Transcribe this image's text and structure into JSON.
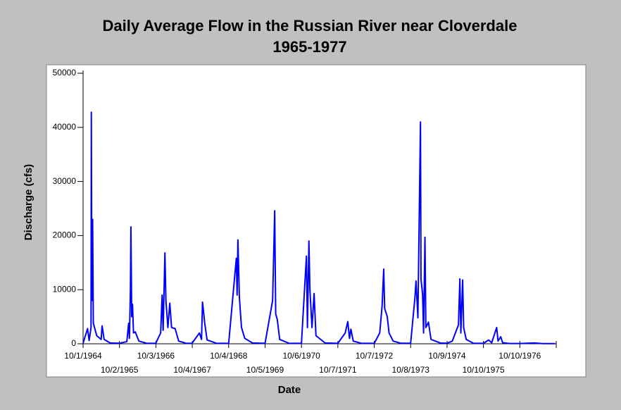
{
  "chart_data": {
    "type": "line",
    "title": "Daily Average Flow in the Russian River near Cloverdale",
    "subtitle": "1965-1977",
    "xlabel": "Date",
    "ylabel": "Discharge (cfs)",
    "color": "#0000ff",
    "xlim": [
      "1964-10-01",
      "1977-10-11"
    ],
    "ylim": [
      0,
      50000
    ],
    "yticks": [
      0,
      10000,
      20000,
      30000,
      40000,
      50000
    ],
    "xticks": [
      {
        "value": "1964-10-01",
        "label": "10/1/1964"
      },
      {
        "value": "1965-10-02",
        "label": "10/2/1965"
      },
      {
        "value": "1966-10-03",
        "label": "10/3/1966"
      },
      {
        "value": "1967-10-04",
        "label": "10/4/1967"
      },
      {
        "value": "1968-10-04",
        "label": "10/4/1968"
      },
      {
        "value": "1969-10-05",
        "label": "10/5/1969"
      },
      {
        "value": "1970-10-06",
        "label": "10/6/1970"
      },
      {
        "value": "1971-10-07",
        "label": "10/7/1971"
      },
      {
        "value": "1972-10-07",
        "label": "10/7/1972"
      },
      {
        "value": "1973-10-08",
        "label": "10/8/1973"
      },
      {
        "value": "1974-10-09",
        "label": "10/9/1974"
      },
      {
        "value": "1975-10-10",
        "label": "10/10/1975"
      },
      {
        "value": "1976-10-10",
        "label": "10/10/1976"
      }
    ],
    "x": [
      "1964-10-01",
      "1964-11-15",
      "1964-12-01",
      "1964-12-20",
      "1964-12-23",
      "1964-12-28",
      "1965-01-05",
      "1965-01-12",
      "1965-02-15",
      "1965-04-01",
      "1965-04-10",
      "1965-05-01",
      "1965-07-01",
      "1965-10-01",
      "1965-12-15",
      "1966-01-02",
      "1966-01-10",
      "1966-01-20",
      "1966-01-25",
      "1966-02-02",
      "1966-02-10",
      "1966-02-20",
      "1966-03-10",
      "1966-04-15",
      "1966-07-01",
      "1966-10-01",
      "1966-11-20",
      "1966-12-05",
      "1966-12-15",
      "1967-01-02",
      "1967-01-12",
      "1967-02-01",
      "1967-02-20",
      "1967-03-10",
      "1967-04-15",
      "1967-05-20",
      "1967-08-01",
      "1967-10-01",
      "1967-12-15",
      "1968-01-05",
      "1968-01-15",
      "1968-01-25",
      "1968-02-05",
      "1968-03-01",
      "1968-06-01",
      "1968-10-04",
      "1968-12-20",
      "1968-12-28",
      "1969-01-05",
      "1969-01-20",
      "1969-02-10",
      "1969-03-15",
      "1969-06-01",
      "1969-10-05",
      "1969-12-20",
      "1970-01-10",
      "1970-01-20",
      "1970-02-05",
      "1970-03-01",
      "1970-06-01",
      "1970-10-06",
      "1970-11-25",
      "1970-12-05",
      "1970-12-20",
      "1970-12-30",
      "1971-01-20",
      "1971-02-10",
      "1971-03-01",
      "1971-06-01",
      "1971-10-07",
      "1971-12-20",
      "1972-01-15",
      "1972-02-01",
      "1972-02-15",
      "1972-03-10",
      "1972-06-01",
      "1972-10-07",
      "1972-12-01",
      "1972-12-25",
      "1973-01-10",
      "1973-01-20",
      "1973-02-15",
      "1973-03-05",
      "1973-04-15",
      "1973-07-01",
      "1973-10-08",
      "1973-11-20",
      "1973-12-01",
      "1973-12-20",
      "1974-01-15",
      "1974-01-20",
      "1974-02-05",
      "1974-02-15",
      "1974-03-01",
      "1974-03-10",
      "1974-04-05",
      "1974-05-01",
      "1974-08-01",
      "1974-10-09",
      "1974-12-01",
      "1975-02-01",
      "1975-02-15",
      "1975-02-25",
      "1975-03-15",
      "1975-03-25",
      "1975-04-20",
      "1975-07-01",
      "1975-10-10",
      "1975-12-01",
      "1976-01-01",
      "1976-02-20",
      "1976-03-05",
      "1976-04-01",
      "1976-04-20",
      "1976-07-01",
      "1976-10-10",
      "1977-03-01",
      "1977-06-01",
      "1977-09-30"
    ],
    "values": [
      100,
      2800,
      600,
      3000,
      42800,
      8000,
      23000,
      3800,
      1500,
      800,
      3300,
      800,
      150,
      100,
      400,
      3800,
      1000,
      10000,
      21600,
      5000,
      7300,
      2000,
      2200,
      500,
      100,
      80,
      2000,
      9000,
      2500,
      16800,
      8000,
      3000,
      7500,
      3000,
      2800,
      500,
      100,
      80,
      2000,
      800,
      7700,
      6000,
      4000,
      700,
      100,
      80,
      15800,
      9000,
      19200,
      8500,
      3000,
      1000,
      150,
      80,
      8000,
      24600,
      5500,
      4500,
      800,
      100,
      80,
      16200,
      3000,
      19000,
      10000,
      3000,
      9300,
      1500,
      150,
      80,
      2000,
      4100,
      1000,
      2700,
      500,
      80,
      80,
      2000,
      7000,
      13800,
      6500,
      5000,
      2000,
      500,
      100,
      90,
      8500,
      11600,
      4800,
      41000,
      12000,
      9200,
      2000,
      19700,
      3000,
      4000,
      800,
      150,
      100,
      500,
      3500,
      12000,
      2000,
      11800,
      3000,
      800,
      100,
      80,
      700,
      200,
      3000,
      500,
      1300,
      200,
      50,
      50,
      150,
      40,
      30
    ]
  }
}
